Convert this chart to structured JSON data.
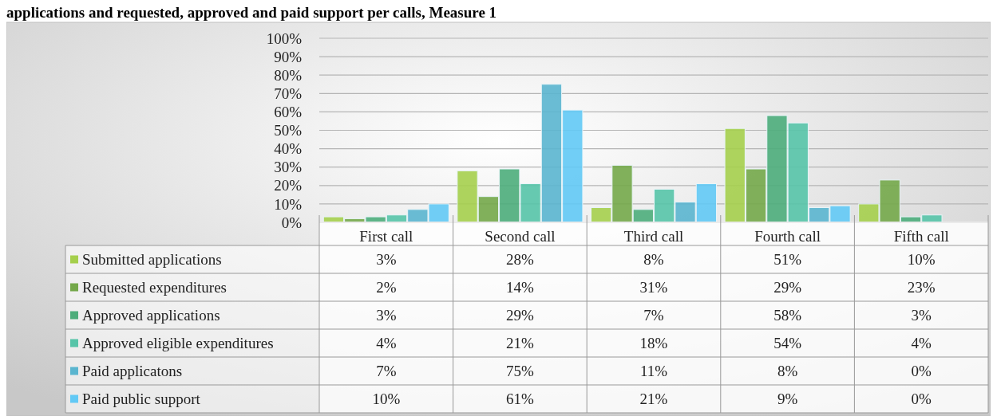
{
  "chart_data": {
    "type": "bar",
    "title": "applications and requested, approved and paid support per calls, Measure 1",
    "categories": [
      "First call",
      "Second call",
      "Third call",
      "Fourth call",
      "Fifth call"
    ],
    "series": [
      {
        "name": "Submitted applications",
        "color": "#a5cf4c",
        "values": [
          3,
          28,
          8,
          51,
          10
        ],
        "value_labels": [
          "3%",
          "28%",
          "8%",
          "51%",
          "10%"
        ]
      },
      {
        "name": "Requested expenditures",
        "color": "#74a84a",
        "values": [
          2,
          14,
          31,
          29,
          23
        ],
        "value_labels": [
          "2%",
          "14%",
          "31%",
          "29%",
          "23%"
        ]
      },
      {
        "name": "Approved applications",
        "color": "#4dad7b",
        "values": [
          3,
          29,
          7,
          58,
          3
        ],
        "value_labels": [
          "3%",
          "29%",
          "7%",
          "58%",
          "3%"
        ]
      },
      {
        "name": "Approved eligible expenditures",
        "color": "#56c4a8",
        "values": [
          4,
          21,
          18,
          54,
          4
        ],
        "value_labels": [
          "4%",
          "21%",
          "18%",
          "54%",
          "4%"
        ]
      },
      {
        "name": "Paid applicatons",
        "color": "#5ab5cf",
        "values": [
          7,
          75,
          11,
          8,
          0
        ],
        "value_labels": [
          "7%",
          "75%",
          "11%",
          "8%",
          "0%"
        ]
      },
      {
        "name": "Paid public support",
        "color": "#62c9f5",
        "values": [
          10,
          61,
          21,
          9,
          0
        ],
        "value_labels": [
          "10%",
          "61%",
          "21%",
          "9%",
          "0%"
        ]
      }
    ],
    "ylim": [
      0,
      100
    ],
    "yticks": [
      {
        "value": 0,
        "label": "0%"
      },
      {
        "value": 10,
        "label": "10%"
      },
      {
        "value": 20,
        "label": "20%"
      },
      {
        "value": 30,
        "label": "30%"
      },
      {
        "value": 40,
        "label": "40%"
      },
      {
        "value": 50,
        "label": "50%"
      },
      {
        "value": 60,
        "label": "60%"
      },
      {
        "value": 70,
        "label": "70%"
      },
      {
        "value": 80,
        "label": "80%"
      },
      {
        "value": 90,
        "label": "90%"
      },
      {
        "value": 100,
        "label": "100%"
      }
    ],
    "grid": "y",
    "legend": "bottom"
  }
}
